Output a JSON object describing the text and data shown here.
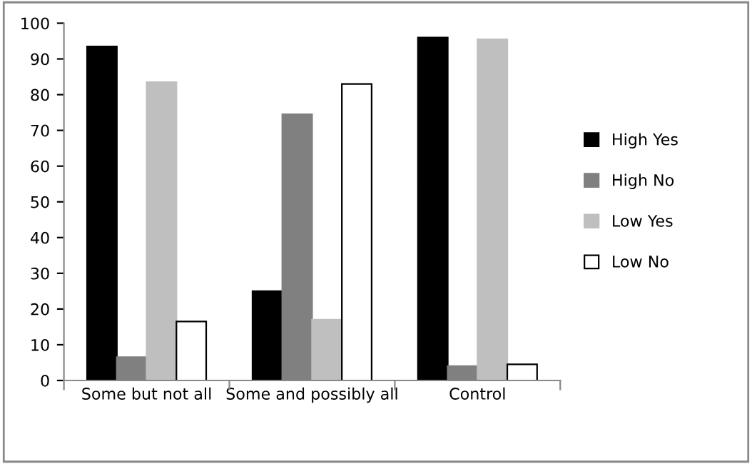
{
  "chart_data": {
    "type": "bar",
    "categories": [
      "Some but not all",
      "Some and possibly all",
      "Control"
    ],
    "series": [
      {
        "name": "High Yes",
        "color": "#000000",
        "values": [
          93.5,
          25,
          96
        ]
      },
      {
        "name": "High No",
        "color": "#808080",
        "values": [
          6.5,
          74.5,
          4
        ]
      },
      {
        "name": "Low Yes",
        "color": "#bfbfbf",
        "values": [
          83.5,
          17,
          95.5
        ]
      },
      {
        "name": "Low No",
        "color": "#ffffff",
        "values": [
          16.5,
          83,
          4.5
        ]
      }
    ],
    "ylim": [
      0,
      100
    ],
    "yticks": [
      0,
      10,
      20,
      30,
      40,
      50,
      60,
      70,
      80,
      90,
      100
    ],
    "grid": false,
    "legend": "right"
  }
}
